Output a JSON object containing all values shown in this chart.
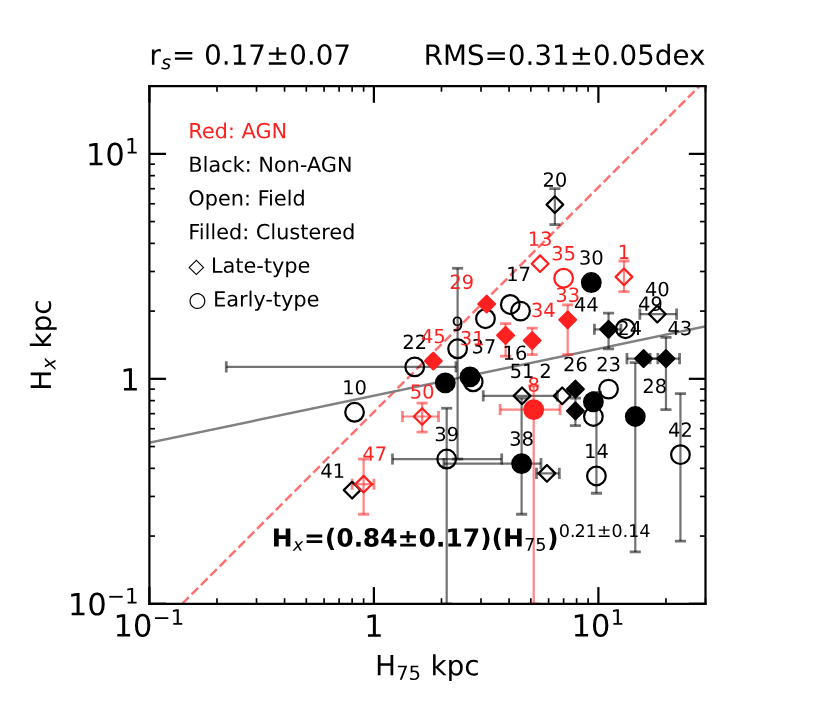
{
  "chart_data": {
    "type": "scatter",
    "xlabel": "H$_{75}$ kpc",
    "ylabel": "H$_{x}$ kpc",
    "log": "xy",
    "xlim": [
      0.1,
      30
    ],
    "ylim": [
      0.1,
      20
    ],
    "xticks": [
      {
        "value": 0.1,
        "label": "10$^{−1}$"
      },
      1,
      {
        "value": 10,
        "label": "10$^{1}$"
      }
    ],
    "yticks": [
      {
        "value": 0.1,
        "label": "10$^{−1}$"
      },
      1,
      {
        "value": 10,
        "label": "10$^{1}$"
      }
    ],
    "grid": false,
    "legend": false,
    "annotations": [
      "r$_{s}$= 0.17±0.07",
      "RMS=0.31±0.05dex",
      "Red: AGN",
      "Black: Non-AGN",
      "Open: Field",
      "Filled: Clustered",
      "◇ Late-type",
      "○ Early-type",
      "H$_{x}$=(0.84±0.17)(H$_{75}$)$^{0.21±0.14}$",
      {
        "text": "22",
        "x": 1.52,
        "y": 1.13
      },
      {
        "text": "10",
        "x": 0.82,
        "y": 0.71
      },
      {
        "text": "9",
        "x": 2.36,
        "y": 1.36
      },
      {
        "text": "39",
        "x": 2.11,
        "y": 0.44
      },
      {
        "text": "49",
        "x": 13.2,
        "y": 1.67
      },
      {
        "text": "23",
        "x": 11.1,
        "y": 0.9
      },
      {
        "text": "42",
        "x": 23.2,
        "y": 0.46
      },
      {
        "text": "14",
        "x": 9.8,
        "y": 0.37
      },
      {
        "text": "17",
        "x": 4.05,
        "y": 2.14
      },
      {
        "text": "16",
        "x": 4.5,
        "y": 2.0
      },
      {
        "text": "37",
        "x": 2.68,
        "y": 1.02
      },
      {
        "text": "30",
        "x": 9.3,
        "y": 2.68
      },
      {
        "text": "28",
        "x": 14.6,
        "y": 0.68
      },
      {
        "text": "38",
        "x": 4.55,
        "y": 0.42
      },
      {
        "text": "41",
        "x": 0.8,
        "y": 0.32
      },
      {
        "text": "20",
        "x": 6.4,
        "y": 5.95
      },
      {
        "text": "40",
        "x": 18.3,
        "y": 1.94
      },
      {
        "text": "2",
        "x": 6.9,
        "y": 0.84
      },
      {
        "text": "51",
        "x": 4.57,
        "y": 0.84
      },
      {
        "text": "44",
        "x": 11.1,
        "y": 1.66
      },
      {
        "text": "24",
        "x": 15.9,
        "y": 1.23
      },
      {
        "text": "43",
        "x": 20.0,
        "y": 1.23
      },
      {
        "text": "26",
        "x": 7.9,
        "y": 0.9
      },
      {
        "text": "35",
        "x": 7.0,
        "y": 2.8
      },
      {
        "text": "8",
        "x": 5.15,
        "y": 0.73
      },
      {
        "text": "13",
        "x": 5.5,
        "y": 3.25
      },
      {
        "text": "1",
        "x": 13.0,
        "y": 2.84
      },
      {
        "text": "50",
        "x": 1.64,
        "y": 0.68
      },
      {
        "text": "47",
        "x": 0.9,
        "y": 0.34
      },
      {
        "text": "45",
        "x": 1.84,
        "y": 1.2
      },
      {
        "text": "29",
        "x": 3.18,
        "y": 2.15
      },
      {
        "text": "31",
        "x": 3.86,
        "y": 1.56
      },
      {
        "text": "34",
        "x": 5.07,
        "y": 1.48
      },
      {
        "text": "33",
        "x": 7.3,
        "y": 1.83
      }
    ],
    "series": [
      {
        "type": "line",
        "color": "#ff7070",
        "line_style": "dashed",
        "x": [
          0.14,
          28.2
        ],
        "values": [
          0.1,
          20
        ]
      },
      {
        "type": "line",
        "color": "#808080",
        "line_style": "solid",
        "x": [
          0.1,
          30
        ],
        "values": [
          0.52,
          1.71
        ]
      },
      {
        "color": "#000000",
        "marker": "circle",
        "x": [
          1.52,
          0.82,
          2.77,
          2.36,
          3.14,
          2.11,
          13.2,
          11.1,
          9.5,
          23.2,
          9.8,
          4.05,
          4.5
        ],
        "values": [
          1.13,
          0.71,
          0.97,
          1.36,
          1.85,
          0.44,
          1.67,
          0.9,
          0.68,
          0.46,
          0.37,
          2.14,
          2.0
        ],
        "errors": [
          null,
          null,
          null,
          [
            0.44,
            3.1
          ],
          null,
          [
            0.1,
            0.74
          ],
          null,
          null,
          null,
          [
            0.19,
            0.86
          ],
          [
            0.31,
            0.87
          ],
          null,
          null
        ],
        "xerrors": [
          [
            0.22,
            2.32
          ],
          null,
          null,
          null,
          null,
          [
            1.21,
            3.71
          ],
          null,
          null,
          null,
          null,
          null,
          null,
          null
        ]
      },
      {
        "color": "#000000",
        "marker": "circle",
        "x": [
          2.08,
          2.68,
          9.3,
          9.5,
          14.6,
          4.55
        ],
        "values": [
          0.96,
          1.02,
          2.68,
          0.79,
          0.68,
          0.42
        ],
        "errors": [
          null,
          null,
          null,
          null,
          [
            0.17,
            1.18
          ],
          [
            0.25,
            0.82
          ]
        ],
        "xerrors": [
          null,
          null,
          null,
          null,
          null,
          [
            2.05,
            5.55
          ]
        ]
      },
      {
        "color": "#000000",
        "marker": "diamond",
        "x": [
          0.8,
          6.4,
          18.3,
          6.9,
          4.57,
          5.9
        ],
        "values": [
          0.32,
          5.95,
          1.94,
          0.84,
          0.84,
          0.38
        ],
        "errors": [
          null,
          [
            4.85,
            7.0
          ],
          null,
          null,
          null,
          null
        ],
        "xerrors": [
          null,
          null,
          [
            15.3,
            22.3
          ],
          null,
          [
            3.07,
            6.57
          ],
          [
            5.3,
            6.7
          ]
        ]
      },
      {
        "color": "#000000",
        "marker": "diamond",
        "x": [
          11.1,
          15.9,
          20.0,
          7.9,
          7.9
        ],
        "values": [
          1.66,
          1.23,
          1.23,
          0.9,
          0.72
        ],
        "errors": [
          [
            1.36,
            1.96
          ],
          null,
          [
            0.73,
            1.53
          ],
          null,
          [
            0.62,
            0.82
          ]
        ],
        "xerrors": [
          [
            9.6,
            12.6
          ],
          [
            13.4,
            18.4
          ],
          [
            17.0,
            23.0
          ],
          null,
          null
        ]
      },
      {
        "color": "#ff2020",
        "marker": "circle",
        "x": [
          7.0
        ],
        "values": [
          2.8
        ]
      },
      {
        "color": "#ff2020",
        "marker": "circle",
        "x": [
          5.15
        ],
        "values": [
          0.73
        ],
        "errors": [
          [
            0.1,
            0.93
          ]
        ],
        "xerrors": [
          [
            3.65,
            6.75
          ]
        ]
      },
      {
        "color": "#ff2020",
        "marker": "diamond",
        "x": [
          5.5,
          13.0,
          1.64,
          0.9
        ],
        "values": [
          3.25,
          2.84,
          0.68,
          0.34
        ],
        "errors": [
          null,
          [
            2.44,
            3.34
          ],
          [
            0.58,
            0.78
          ],
          [
            0.25,
            0.44
          ]
        ],
        "xerrors": [
          null,
          null,
          [
            1.34,
            1.94
          ],
          [
            0.8,
            1.0
          ]
        ]
      },
      {
        "color": "#ff2020",
        "marker": "diamond",
        "x": [
          1.84,
          3.18,
          3.86,
          5.07,
          7.3
        ],
        "values": [
          1.2,
          2.15,
          1.56,
          1.48,
          1.83
        ],
        "errors": [
          null,
          null,
          [
            1.26,
            1.76
          ],
          [
            1.28,
            1.68
          ],
          [
            1.28,
            2.13
          ]
        ]
      }
    ]
  }
}
